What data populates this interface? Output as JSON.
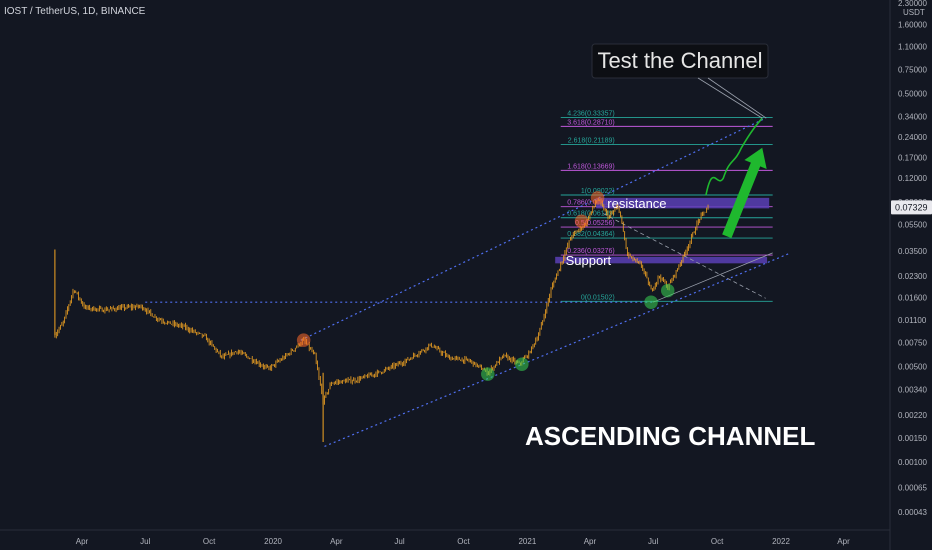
{
  "header": {
    "symbol_title": "IOST / TetherUS, 1D, BINANCE"
  },
  "chart_data": {
    "type": "candlestick",
    "y_scale": "log",
    "ylim": [
      0.00033,
      2.4
    ],
    "y_unit": "USDT",
    "y_ticks": [
      "2.30000",
      "1.60000",
      "1.10000",
      "0.75000",
      "0.50000",
      "0.34000",
      "0.24000",
      "0.17000",
      "0.12000",
      "0.08000",
      "0.05500",
      "0.03500",
      "0.02300",
      "0.01600",
      "0.01100",
      "0.00750",
      "0.00500",
      "0.00340",
      "0.00220",
      "0.00150",
      "0.00100",
      "0.00065",
      "0.00043"
    ],
    "y_tick_values": [
      2.3,
      1.6,
      1.1,
      0.75,
      0.5,
      0.34,
      0.24,
      0.17,
      0.12,
      0.08,
      0.055,
      0.035,
      0.023,
      0.016,
      0.011,
      0.0075,
      0.005,
      0.0034,
      0.0022,
      0.0015,
      0.001,
      0.00065,
      0.00043
    ],
    "x_ticks": [
      {
        "label": "Apr",
        "date": "2019-04-01"
      },
      {
        "label": "Jul",
        "date": "2019-07-01"
      },
      {
        "label": "Oct",
        "date": "2019-10-01"
      },
      {
        "label": "2020",
        "date": "2020-01-01"
      },
      {
        "label": "Apr",
        "date": "2020-04-01"
      },
      {
        "label": "Jul",
        "date": "2020-07-01"
      },
      {
        "label": "Oct",
        "date": "2020-10-01"
      },
      {
        "label": "2021",
        "date": "2021-01-01"
      },
      {
        "label": "Apr",
        "date": "2021-04-01"
      },
      {
        "label": "Jul",
        "date": "2021-07-01"
      },
      {
        "label": "Oct",
        "date": "2021-10-01"
      },
      {
        "label": "2022",
        "date": "2022-01-01"
      },
      {
        "label": "Apr",
        "date": "2022-04-01"
      }
    ],
    "last_price": "0.07329",
    "price_path": [
      [
        "2019-02-21",
        0.0085
      ],
      [
        "2019-03-05",
        0.0105
      ],
      [
        "2019-03-20",
        0.0185
      ],
      [
        "2019-04-05",
        0.0135
      ],
      [
        "2019-05-01",
        0.013
      ],
      [
        "2019-06-01",
        0.0135
      ],
      [
        "2019-06-25",
        0.0138
      ],
      [
        "2019-07-15",
        0.0115
      ],
      [
        "2019-08-01",
        0.0105
      ],
      [
        "2019-08-25",
        0.0098
      ],
      [
        "2019-09-25",
        0.0082
      ],
      [
        "2019-10-20",
        0.0058
      ],
      [
        "2019-11-10",
        0.0065
      ],
      [
        "2019-12-05",
        0.0055
      ],
      [
        "2019-12-25",
        0.0048
      ],
      [
        "2020-01-20",
        0.006
      ],
      [
        "2020-02-14",
        0.0078
      ],
      [
        "2020-03-01",
        0.006
      ],
      [
        "2020-03-13",
        0.0028
      ],
      [
        "2020-03-25",
        0.0038
      ],
      [
        "2020-05-01",
        0.004
      ],
      [
        "2020-06-05",
        0.0046
      ],
      [
        "2020-07-10",
        0.0055
      ],
      [
        "2020-08-15",
        0.0072
      ],
      [
        "2020-09-10",
        0.0058
      ],
      [
        "2020-10-10",
        0.0055
      ],
      [
        "2020-11-05",
        0.0045
      ],
      [
        "2020-11-28",
        0.006
      ],
      [
        "2020-12-20",
        0.0052
      ],
      [
        "2021-01-03",
        0.0062
      ],
      [
        "2021-01-18",
        0.0088
      ],
      [
        "2021-02-05",
        0.019
      ],
      [
        "2021-02-20",
        0.03
      ],
      [
        "2021-03-05",
        0.045
      ],
      [
        "2021-03-25",
        0.055
      ],
      [
        "2021-04-12",
        0.085
      ],
      [
        "2021-04-28",
        0.062
      ],
      [
        "2021-05-12",
        0.075
      ],
      [
        "2021-05-25",
        0.033
      ],
      [
        "2021-06-15",
        0.027
      ],
      [
        "2021-06-28",
        0.018
      ],
      [
        "2021-07-10",
        0.023
      ],
      [
        "2021-07-22",
        0.019
      ],
      [
        "2021-08-05",
        0.026
      ],
      [
        "2021-08-20",
        0.038
      ],
      [
        "2021-09-05",
        0.06
      ],
      [
        "2021-09-18",
        0.0733
      ]
    ],
    "fib_levels": [
      {
        "label": "4.236(0.33357)",
        "value": 0.33357,
        "color": "#26a69a"
      },
      {
        "label": "3.618(0.28710)",
        "value": 0.2871,
        "color": "#c158dc"
      },
      {
        "label": "2.618(0.21189)",
        "value": 0.21189,
        "color": "#26a69a"
      },
      {
        "label": "1.618(0.13669)",
        "value": 0.13669,
        "color": "#c158dc"
      },
      {
        "label": "1(0.09022)",
        "value": 0.09022,
        "color": "#26a69a"
      },
      {
        "label": "0.786(0.07413)",
        "value": 0.07413,
        "color": "#c158dc"
      },
      {
        "label": "0.618(0.06149)",
        "value": 0.06149,
        "color": "#26a69a"
      },
      {
        "label": "0.5(0.05256)",
        "value": 0.05256,
        "color": "#c158dc"
      },
      {
        "label": "0.382(0.04364)",
        "value": 0.04364,
        "color": "#26a69a"
      },
      {
        "label": "0.236(0.03276)",
        "value": 0.03276,
        "color": "#c158dc"
      },
      {
        "label": "0(0.01502)",
        "value": 0.01502,
        "color": "#26a69a"
      }
    ],
    "annotations": {
      "test_channel": "Test the Channel",
      "resistance": "resistance",
      "support": "Support",
      "pattern": "ASCENDING CHANNEL"
    },
    "colors": {
      "background": "#131722",
      "candles": "#f5a623",
      "channel": "#4f6ff0",
      "zone": "#5b3fb5",
      "arrow": "#1fb82e",
      "orange_marker": "#ff6a2b",
      "green_marker": "#39d353",
      "text": "#d1d4dc"
    }
  }
}
